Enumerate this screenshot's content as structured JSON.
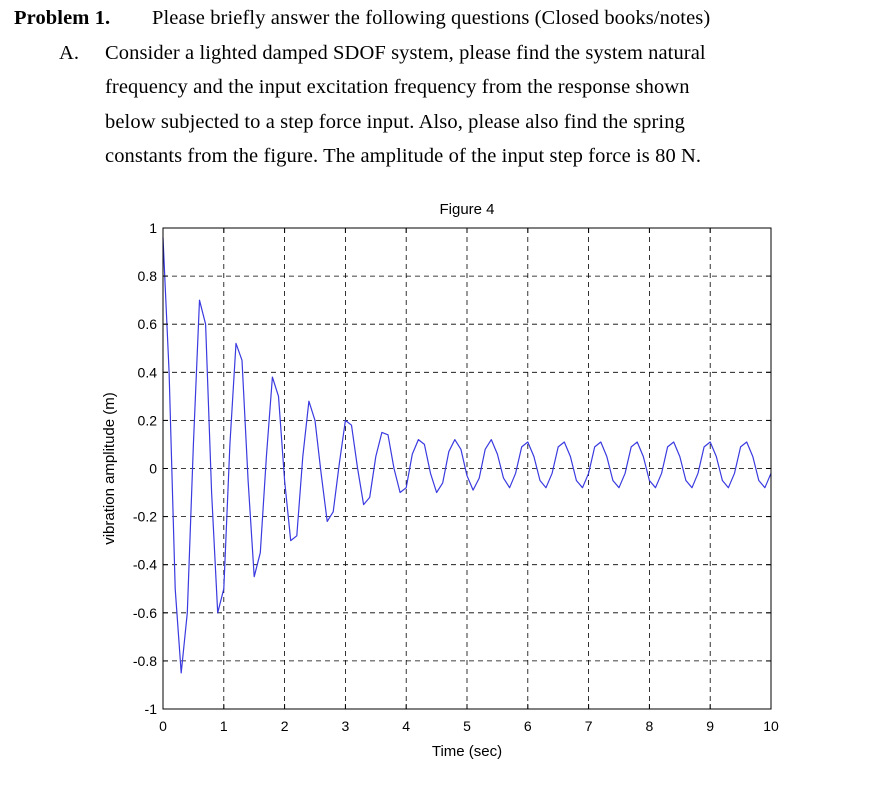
{
  "problem": {
    "label": "Problem 1.",
    "intro": "Please briefly answer the following questions (Closed books/notes)",
    "part_label": "A.",
    "lines": [
      "Consider a lighted damped SDOF system, please find the system natural",
      "frequency and the input excitation frequency from the response shown",
      "below subjected to a step force input.   Also, please also find the spring",
      "constants from the figure.   The amplitude of the input step force is 80 N."
    ]
  },
  "chart_data": {
    "type": "line",
    "title": "Figure 4",
    "xlabel": "Time (sec)",
    "ylabel": "vibration amplitude (m)",
    "xlim": [
      0,
      10
    ],
    "ylim": [
      -1,
      1
    ],
    "xticks": [
      "0",
      "1",
      "2",
      "3",
      "4",
      "5",
      "6",
      "7",
      "8",
      "9",
      "10"
    ],
    "yticks": [
      "-1",
      "-0.8",
      "-0.6",
      "-0.4",
      "-0.2",
      "0",
      "0.2",
      "0.4",
      "0.6",
      "0.8",
      "1"
    ],
    "grid": "dashed",
    "line_color": "#3a3ae0",
    "series": [
      {
        "x": [
          0.0,
          0.1,
          0.2,
          0.3,
          0.4,
          0.5,
          0.6,
          0.7,
          0.8,
          0.9,
          1.0,
          1.1,
          1.2,
          1.3,
          1.4,
          1.5,
          1.6,
          1.7,
          1.8,
          1.9,
          2.0,
          2.1,
          2.2,
          2.3,
          2.4,
          2.5,
          2.6,
          2.7,
          2.8,
          2.9,
          3.0,
          3.1,
          3.2,
          3.3,
          3.4,
          3.5,
          3.6,
          3.7,
          3.8,
          3.9,
          4.0,
          4.1,
          4.2,
          4.3,
          4.4,
          4.5,
          4.6,
          4.7,
          4.8,
          4.9,
          5.0,
          5.1,
          5.2,
          5.3,
          5.4,
          5.5,
          5.6,
          5.7,
          5.8,
          5.9,
          6.0,
          6.1,
          6.2,
          6.3,
          6.4,
          6.5,
          6.6,
          6.7,
          6.8,
          6.9,
          7.0,
          7.1,
          7.2,
          7.3,
          7.4,
          7.5,
          7.6,
          7.7,
          7.8,
          7.9,
          8.0,
          8.1,
          8.2,
          8.3,
          8.4,
          8.5,
          8.6,
          8.7,
          8.8,
          8.9,
          9.0,
          9.1,
          9.2,
          9.3,
          9.4,
          9.5,
          9.6,
          9.7,
          9.8,
          9.9,
          10.0
        ],
        "y": [
          0.96,
          0.4,
          -0.5,
          -0.85,
          -0.6,
          0.1,
          0.7,
          0.6,
          -0.1,
          -0.6,
          -0.5,
          0.1,
          0.52,
          0.45,
          -0.05,
          -0.45,
          -0.35,
          0.05,
          0.38,
          0.3,
          -0.05,
          -0.3,
          -0.28,
          0.05,
          0.28,
          0.2,
          -0.02,
          -0.22,
          -0.18,
          0.02,
          0.2,
          0.18,
          0.0,
          -0.15,
          -0.12,
          0.05,
          0.15,
          0.14,
          0.0,
          -0.1,
          -0.08,
          0.06,
          0.12,
          0.1,
          -0.02,
          -0.1,
          -0.06,
          0.07,
          0.12,
          0.08,
          -0.03,
          -0.09,
          -0.04,
          0.08,
          0.12,
          0.06,
          -0.04,
          -0.08,
          -0.02,
          0.09,
          0.11,
          0.05,
          -0.05,
          -0.08,
          -0.02,
          0.09,
          0.11,
          0.05,
          -0.05,
          -0.08,
          -0.02,
          0.09,
          0.11,
          0.05,
          -0.05,
          -0.08,
          -0.02,
          0.09,
          0.11,
          0.05,
          -0.05,
          -0.08,
          -0.02,
          0.09,
          0.11,
          0.05,
          -0.05,
          -0.08,
          -0.02,
          0.09,
          0.11,
          0.05,
          -0.05,
          -0.08,
          -0.02,
          0.09,
          0.11,
          0.05,
          -0.05,
          -0.08,
          -0.02
        ]
      }
    ]
  }
}
